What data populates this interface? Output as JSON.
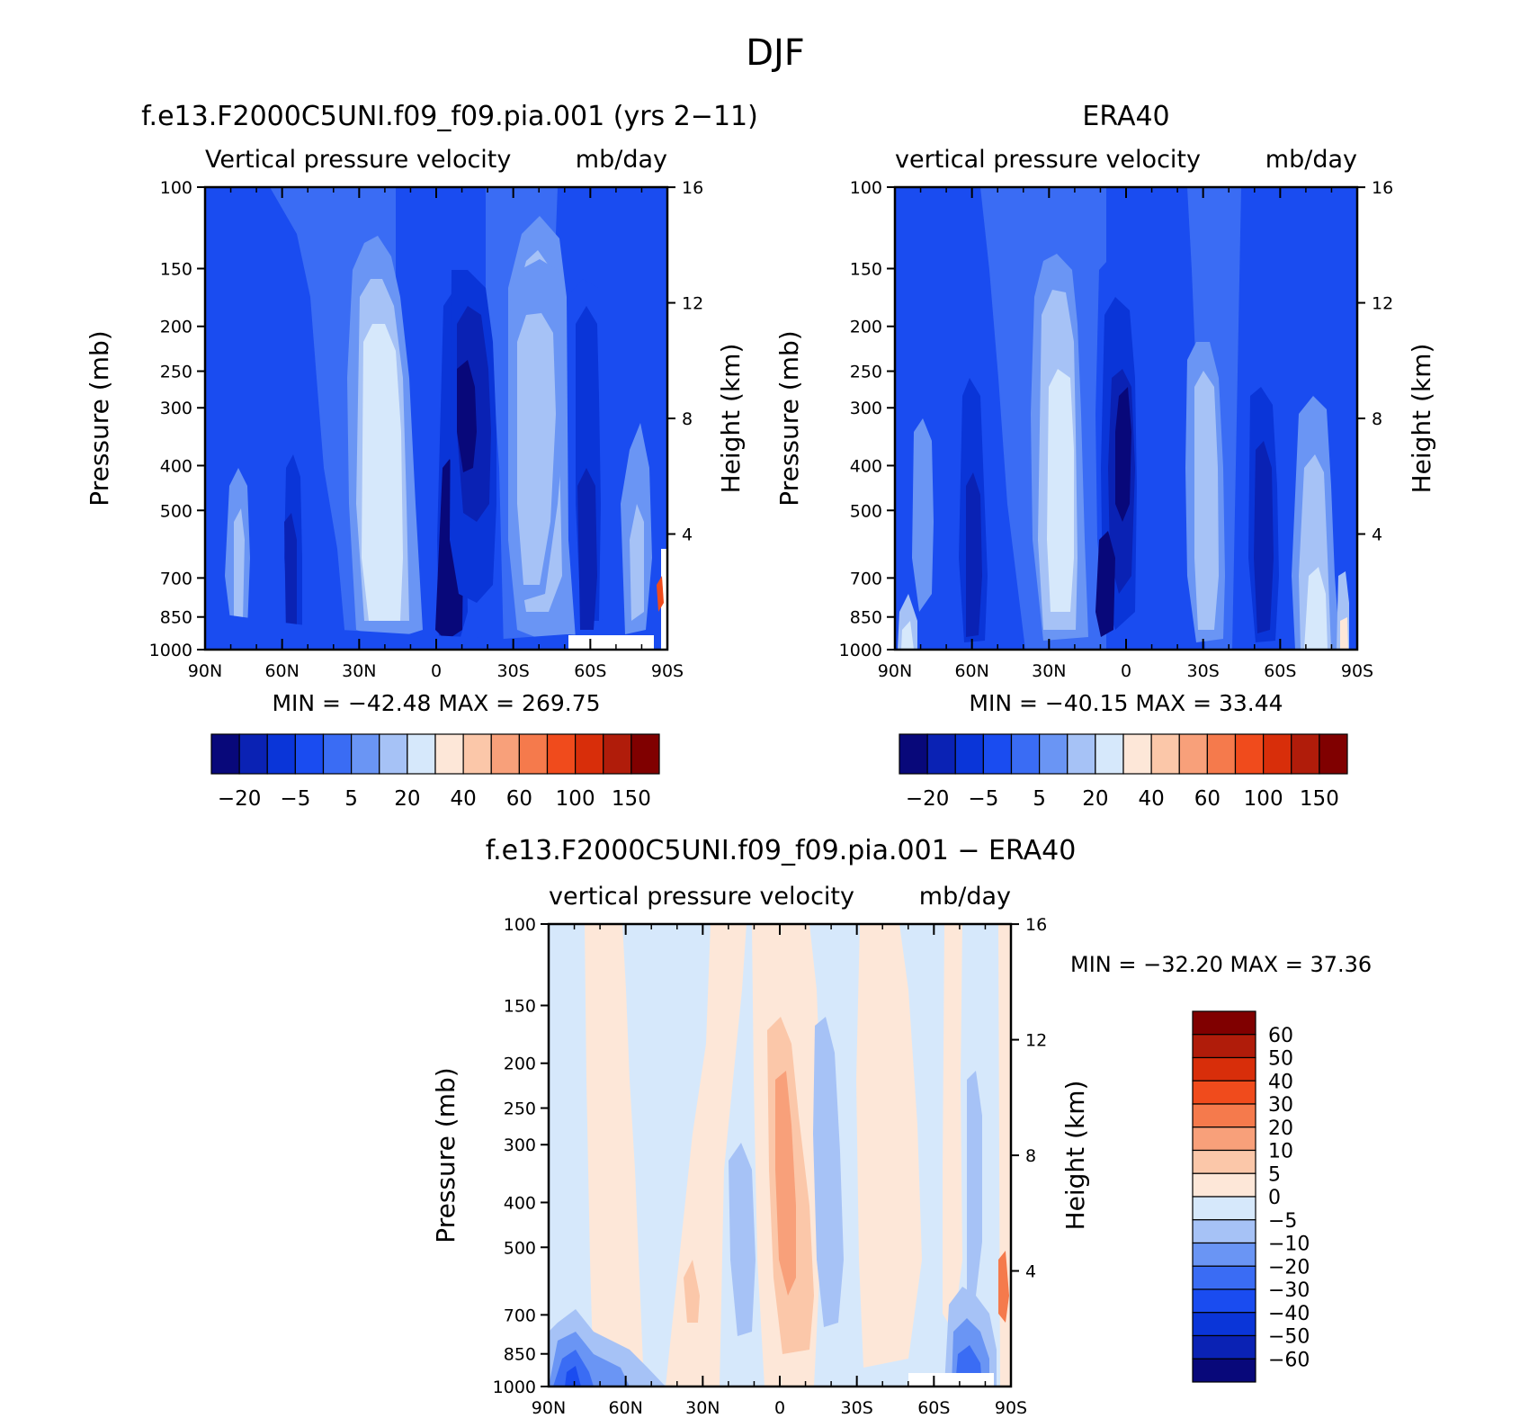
{
  "figure": {
    "title": "DJF"
  },
  "contour_colors": [
    "#08087a",
    "#0a22b4",
    "#0a35d8",
    "#1a4cf0",
    "#3a6cf4",
    "#6a95f4",
    "#a6c2f6",
    "#d6e8fb",
    "#fde7d8",
    "#fbc7a9",
    "#f8a07a",
    "#f57a4c",
    "#f04b1c",
    "#d82e0a",
    "#b01c0a",
    "#800000"
  ],
  "chart_data": [
    {
      "type": "heatmap",
      "id": "model",
      "title": "f.e13.F2000C5UNI.f09_f09.pia.001 (yrs 2−11)",
      "subtitle_left": "Vertical pressure velocity",
      "subtitle_right": "mb/day",
      "ylabel": "Pressure (mb)",
      "y2label": "Height (km)",
      "x_ticks": [
        "90N",
        "60N",
        "30N",
        "0",
        "30S",
        "60S",
        "90S"
      ],
      "y_ticks": [
        "100",
        "150",
        "200",
        "250",
        "300",
        "400",
        "500",
        "700",
        "850",
        "1000"
      ],
      "y2_ticks": [
        "16",
        "12",
        "8",
        "4"
      ],
      "stats": "MIN = −42.48   MAX = 269.75",
      "colorbar_labels": [
        "−20",
        "−5",
        "5",
        "20",
        "40",
        "60",
        "100",
        "150"
      ],
      "min": -42.48,
      "max": 269.75
    },
    {
      "type": "heatmap",
      "id": "obs",
      "title": "ERA40",
      "subtitle_left": "vertical pressure velocity",
      "subtitle_right": "mb/day",
      "ylabel": "Pressure (mb)",
      "y2label": "Height (km)",
      "x_ticks": [
        "90N",
        "60N",
        "30N",
        "0",
        "30S",
        "60S",
        "90S"
      ],
      "y_ticks": [
        "100",
        "150",
        "200",
        "250",
        "300",
        "400",
        "500",
        "700",
        "850",
        "1000"
      ],
      "y2_ticks": [
        "16",
        "12",
        "8",
        "4"
      ],
      "stats": "MIN = −40.15   MAX =  33.44",
      "colorbar_labels": [
        "−20",
        "−5",
        "5",
        "20",
        "40",
        "60",
        "100",
        "150"
      ],
      "min": -40.15,
      "max": 33.44
    },
    {
      "type": "heatmap",
      "id": "diff",
      "title": "f.e13.F2000C5UNI.f09_f09.pia.001 − ERA40",
      "subtitle_left": "vertical pressure velocity",
      "subtitle_right": "mb/day",
      "ylabel": "Pressure (mb)",
      "y2label": "Height (km)",
      "x_ticks": [
        "90N",
        "60N",
        "30N",
        "0",
        "30S",
        "60S",
        "90S"
      ],
      "y_ticks": [
        "100",
        "150",
        "200",
        "250",
        "300",
        "400",
        "500",
        "700",
        "850",
        "1000"
      ],
      "y2_ticks": [
        "16",
        "12",
        "8",
        "4"
      ],
      "stats": "MIN = −32.20   MAX =  37.36",
      "colorbar_labels": [
        "60",
        "50",
        "40",
        "30",
        "20",
        "10",
        "5",
        "0",
        "−5",
        "−10",
        "−20",
        "−30",
        "−40",
        "−50",
        "−60"
      ],
      "min": -32.2,
      "max": 37.36
    }
  ]
}
